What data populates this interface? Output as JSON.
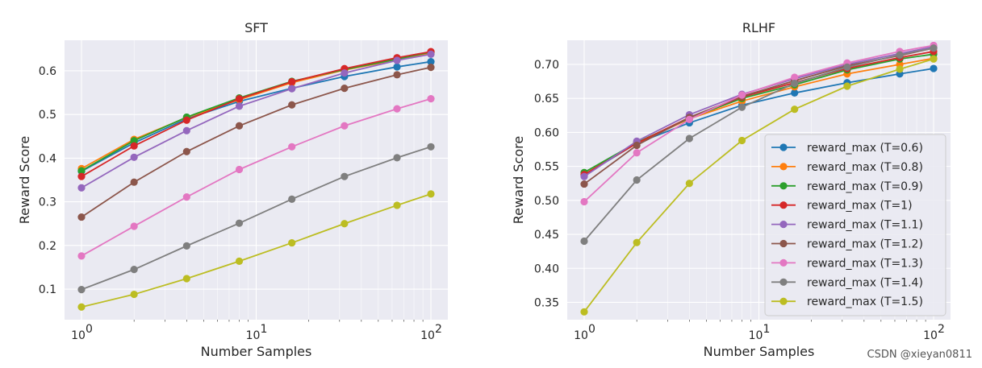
{
  "chart_data": [
    {
      "type": "line",
      "title": "SFT",
      "xlabel": "Number Samples",
      "ylabel": "Reward Score",
      "xscale": "log",
      "xlim": [
        0.8,
        125
      ],
      "ylim": [
        0.03,
        0.67
      ],
      "yticks": [
        "0.1",
        "0.2",
        "0.3",
        "0.4",
        "0.5",
        "0.6"
      ],
      "xticks": [
        {
          "base": "10",
          "exp": "0"
        },
        {
          "base": "10",
          "exp": "1"
        },
        {
          "base": "10",
          "exp": "2"
        }
      ],
      "x": [
        1,
        2,
        4,
        8,
        16,
        32,
        64,
        100
      ],
      "legend": false,
      "series": [
        {
          "name": "reward_max (T=0.6)",
          "color": "#1f77b4",
          "values": [
            0.37,
            0.435,
            0.49,
            0.53,
            0.56,
            0.587,
            0.609,
            0.621
          ]
        },
        {
          "name": "reward_max (T=0.8)",
          "color": "#ff7f0e",
          "values": [
            0.376,
            0.443,
            0.493,
            0.534,
            0.573,
            0.602,
            0.625,
            0.641
          ]
        },
        {
          "name": "reward_max (T=0.9)",
          "color": "#2ca02c",
          "values": [
            0.371,
            0.44,
            0.494,
            0.538,
            0.576,
            0.603,
            0.627,
            0.643
          ]
        },
        {
          "name": "reward_max (T=1)",
          "color": "#d62728",
          "values": [
            0.358,
            0.428,
            0.487,
            0.536,
            0.575,
            0.605,
            0.63,
            0.644
          ]
        },
        {
          "name": "reward_max (T=1.1)",
          "color": "#9467bd",
          "values": [
            0.332,
            0.402,
            0.463,
            0.519,
            0.559,
            0.595,
            0.624,
            0.638
          ]
        },
        {
          "name": "reward_max (T=1.2)",
          "color": "#8c564b",
          "values": [
            0.265,
            0.345,
            0.415,
            0.474,
            0.522,
            0.56,
            0.591,
            0.608
          ]
        },
        {
          "name": "reward_max (T=1.3)",
          "color": "#e377c2",
          "values": [
            0.176,
            0.244,
            0.311,
            0.374,
            0.426,
            0.474,
            0.513,
            0.536
          ]
        },
        {
          "name": "reward_max (T=1.4)",
          "color": "#7f7f7f",
          "values": [
            0.099,
            0.145,
            0.199,
            0.251,
            0.306,
            0.358,
            0.401,
            0.426
          ]
        },
        {
          "name": "reward_max (T=1.5)",
          "color": "#bcbd22",
          "values": [
            0.059,
            0.088,
            0.124,
            0.164,
            0.206,
            0.25,
            0.292,
            0.318
          ]
        }
      ]
    },
    {
      "type": "line",
      "title": "RLHF",
      "xlabel": "Number Samples",
      "ylabel": "Reward Score",
      "xscale": "log",
      "xlim": [
        0.8,
        125
      ],
      "ylim": [
        0.3245,
        0.7355
      ],
      "yticks": [
        "0.35",
        "0.40",
        "0.45",
        "0.50",
        "0.55",
        "0.60",
        "0.65",
        "0.70"
      ],
      "xticks": [
        {
          "base": "10",
          "exp": "0"
        },
        {
          "base": "10",
          "exp": "1"
        },
        {
          "base": "10",
          "exp": "2"
        }
      ],
      "x": [
        1,
        2,
        4,
        8,
        16,
        32,
        64,
        100
      ],
      "legend": "center-right",
      "series": [
        {
          "name": "reward_max (T=0.6)",
          "color": "#1f77b4",
          "values": [
            0.537,
            0.584,
            0.614,
            0.64,
            0.658,
            0.673,
            0.686,
            0.694
          ]
        },
        {
          "name": "reward_max (T=0.8)",
          "color": "#ff7f0e",
          "values": [
            0.538,
            0.584,
            0.62,
            0.646,
            0.667,
            0.686,
            0.7,
            0.709
          ]
        },
        {
          "name": "reward_max (T=0.9)",
          "color": "#2ca02c",
          "values": [
            0.541,
            0.585,
            0.621,
            0.65,
            0.67,
            0.692,
            0.708,
            0.715
          ]
        },
        {
          "name": "reward_max (T=1)",
          "color": "#d62728",
          "values": [
            0.538,
            0.584,
            0.622,
            0.652,
            0.673,
            0.694,
            0.71,
            0.719
          ]
        },
        {
          "name": "reward_max (T=1.1)",
          "color": "#9467bd",
          "values": [
            0.535,
            0.587,
            0.626,
            0.656,
            0.679,
            0.7,
            0.716,
            0.726
          ]
        },
        {
          "name": "reward_max (T=1.2)",
          "color": "#8c564b",
          "values": [
            0.524,
            0.581,
            0.622,
            0.653,
            0.676,
            0.698,
            0.713,
            0.724
          ]
        },
        {
          "name": "reward_max (T=1.3)",
          "color": "#e377c2",
          "values": [
            0.498,
            0.57,
            0.619,
            0.655,
            0.681,
            0.702,
            0.719,
            0.728
          ]
        },
        {
          "name": "reward_max (T=1.4)",
          "color": "#7f7f7f",
          "values": [
            0.44,
            0.53,
            0.591,
            0.637,
            0.672,
            0.696,
            0.714,
            0.724
          ]
        },
        {
          "name": "reward_max (T=1.5)",
          "color": "#bcbd22",
          "values": [
            0.336,
            0.438,
            0.525,
            0.588,
            0.634,
            0.668,
            0.693,
            0.708
          ]
        }
      ]
    }
  ],
  "watermark": "CSDN @xieyan0811"
}
